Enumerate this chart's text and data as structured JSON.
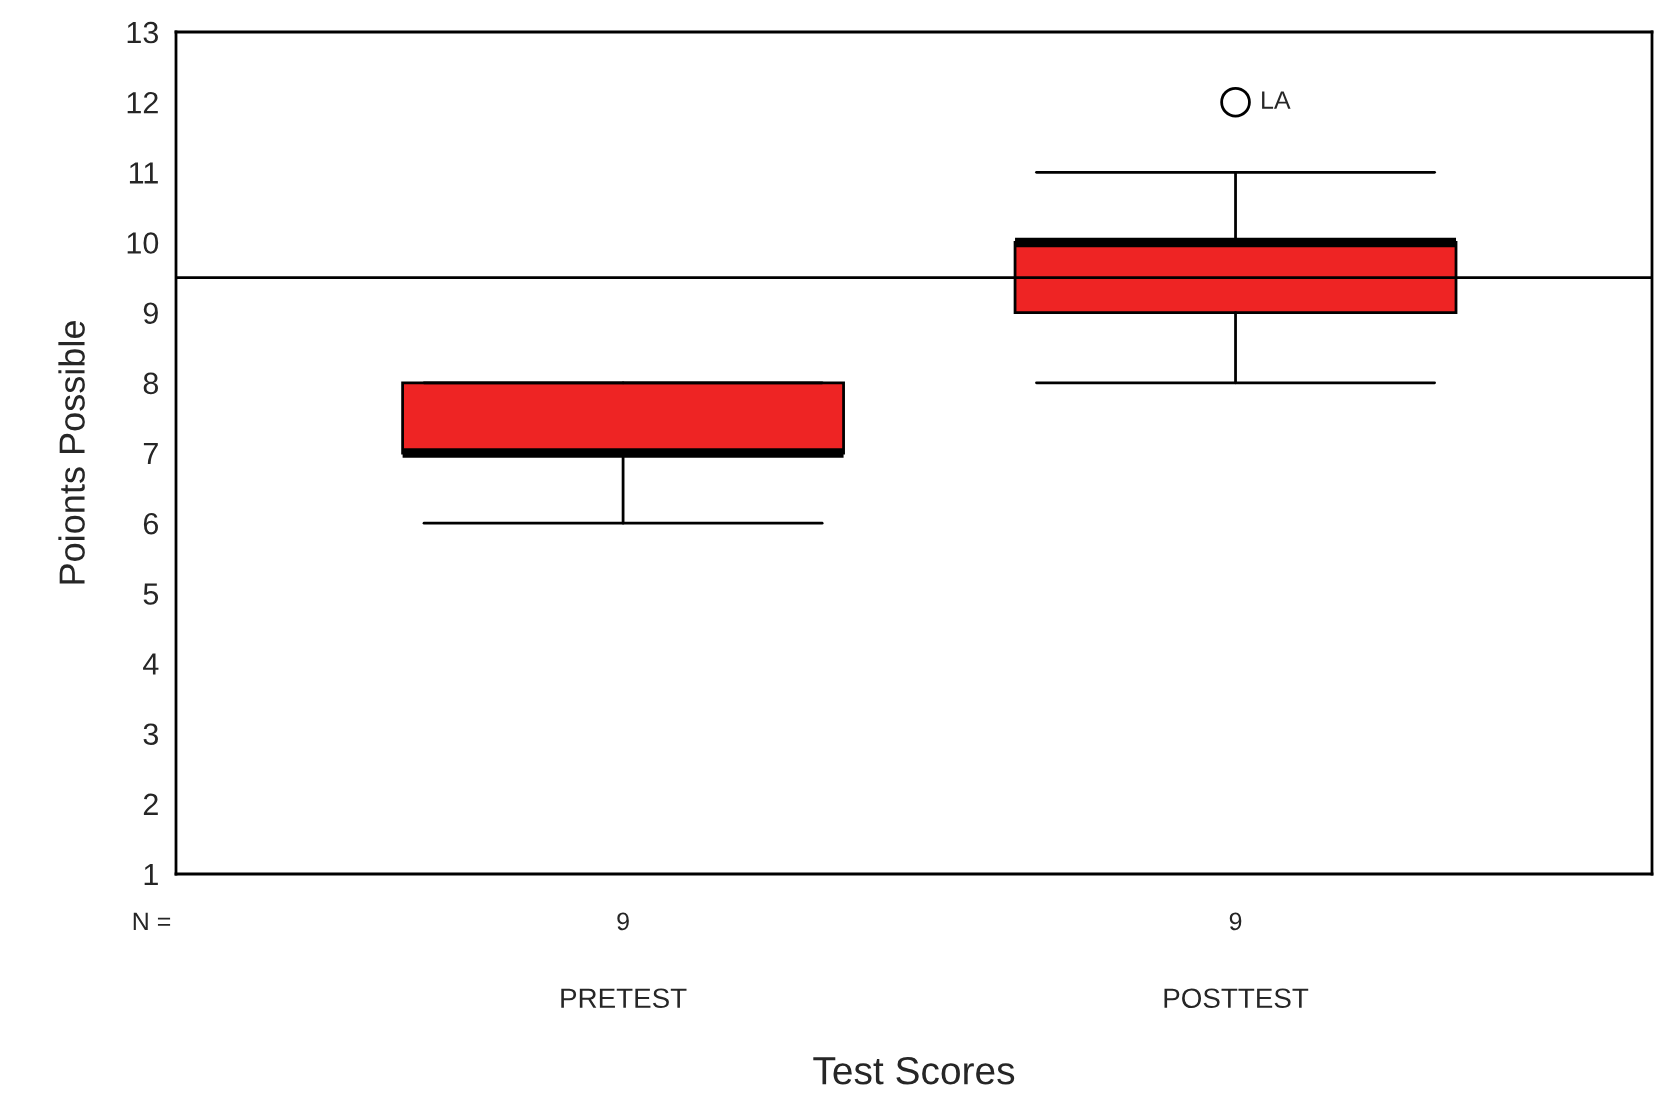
{
  "chart_data": {
    "type": "box",
    "xlabel": "Test Scores",
    "ylabel": "Poionts Possible",
    "categories": [
      "PRETEST",
      "POSTTEST"
    ],
    "series": [
      {
        "color": "#ee2424",
        "boxes": [
          {
            "low": 6,
            "q1": 7,
            "median": 7,
            "q3": 8,
            "high": 8
          },
          {
            "low": 8,
            "q1": 9,
            "median": 10,
            "q3": 10,
            "high": 11,
            "outliers": [
              12
            ]
          }
        ]
      }
    ],
    "ylim": [
      1,
      13
    ],
    "yticks": [
      1,
      2,
      3,
      4,
      5,
      6,
      7,
      8,
      9,
      10,
      11,
      12,
      13
    ],
    "ref_lines": [
      {
        "axis": "y",
        "value": 9.5,
        "color": "#000000"
      }
    ],
    "annotations": [
      "N =",
      "9",
      "9",
      "LA"
    ],
    "grid": false,
    "legend": false
  }
}
